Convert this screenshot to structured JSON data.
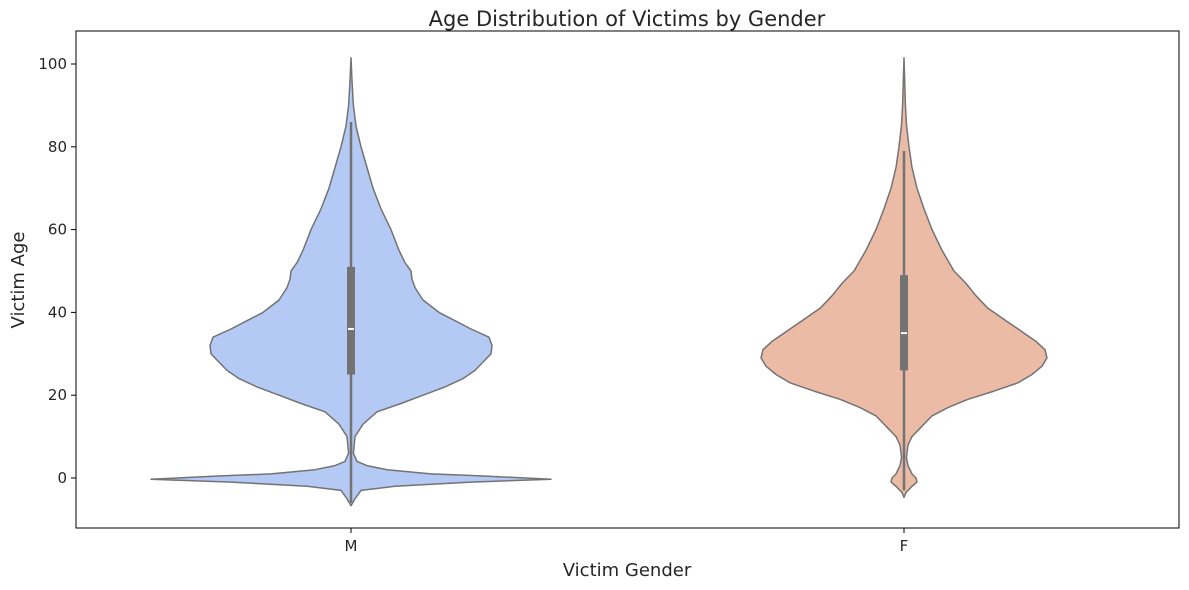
{
  "chart_data": {
    "type": "violin",
    "title": "Age Distribution of Victims by Gender",
    "xlabel": "Victim Gender",
    "ylabel": "Victim Age",
    "ylim": [
      -12,
      107
    ],
    "yticks": [
      0,
      20,
      40,
      60,
      80,
      100
    ],
    "categories": [
      "M",
      "F"
    ],
    "series": [
      {
        "name": "M",
        "color": "#b4c9f3",
        "quartiles": {
          "q1": 25,
          "median": 36,
          "q3": 51
        },
        "whiskers": [
          -6,
          86
        ],
        "density": [
          {
            "age": -6.7,
            "width": 0.0
          },
          {
            "age": -5,
            "width": 0.02
          },
          {
            "age": -3,
            "width": 0.05
          },
          {
            "age": -2,
            "width": 0.22
          },
          {
            "age": -1,
            "width": 0.6
          },
          {
            "age": -0.3,
            "width": 1.0
          },
          {
            "age": 0.5,
            "width": 0.65
          },
          {
            "age": 1,
            "width": 0.4
          },
          {
            "age": 2,
            "width": 0.18
          },
          {
            "age": 3,
            "width": 0.08
          },
          {
            "age": 4,
            "width": 0.03
          },
          {
            "age": 6,
            "width": 0.012
          },
          {
            "age": 10,
            "width": 0.02
          },
          {
            "age": 13,
            "width": 0.06
          },
          {
            "age": 16,
            "width": 0.13
          },
          {
            "age": 18,
            "width": 0.25
          },
          {
            "age": 20,
            "width": 0.36
          },
          {
            "age": 22,
            "width": 0.47
          },
          {
            "age": 24,
            "width": 0.56
          },
          {
            "age": 26,
            "width": 0.62
          },
          {
            "age": 28,
            "width": 0.66
          },
          {
            "age": 30,
            "width": 0.7
          },
          {
            "age": 32,
            "width": 0.705
          },
          {
            "age": 34,
            "width": 0.69
          },
          {
            "age": 36,
            "width": 0.6
          },
          {
            "age": 38,
            "width": 0.52
          },
          {
            "age": 40,
            "width": 0.44
          },
          {
            "age": 43,
            "width": 0.36
          },
          {
            "age": 46,
            "width": 0.32
          },
          {
            "age": 48,
            "width": 0.305
          },
          {
            "age": 50,
            "width": 0.3
          },
          {
            "age": 52,
            "width": 0.27
          },
          {
            "age": 55,
            "width": 0.24
          },
          {
            "age": 60,
            "width": 0.2
          },
          {
            "age": 65,
            "width": 0.15
          },
          {
            "age": 70,
            "width": 0.11
          },
          {
            "age": 75,
            "width": 0.08
          },
          {
            "age": 80,
            "width": 0.05
          },
          {
            "age": 85,
            "width": 0.025
          },
          {
            "age": 90,
            "width": 0.012
          },
          {
            "age": 95,
            "width": 0.006
          },
          {
            "age": 101.5,
            "width": 0.0
          }
        ]
      },
      {
        "name": "F",
        "color": "#ecbba6",
        "quartiles": {
          "q1": 26,
          "median": 35,
          "q3": 49
        },
        "whiskers": [
          -3,
          79
        ],
        "density": [
          {
            "age": -4.7,
            "width": 0.0
          },
          {
            "age": -3.5,
            "width": 0.01
          },
          {
            "age": -2,
            "width": 0.04
          },
          {
            "age": -1,
            "width": 0.065
          },
          {
            "age": 0,
            "width": 0.06
          },
          {
            "age": 1,
            "width": 0.04
          },
          {
            "age": 2,
            "width": 0.03
          },
          {
            "age": 3,
            "width": 0.02
          },
          {
            "age": 5,
            "width": 0.012
          },
          {
            "age": 8,
            "width": 0.02
          },
          {
            "age": 10,
            "width": 0.04
          },
          {
            "age": 12,
            "width": 0.08
          },
          {
            "age": 15,
            "width": 0.14
          },
          {
            "age": 17,
            "width": 0.22
          },
          {
            "age": 19,
            "width": 0.32
          },
          {
            "age": 21,
            "width": 0.45
          },
          {
            "age": 23,
            "width": 0.57
          },
          {
            "age": 25,
            "width": 0.64
          },
          {
            "age": 27,
            "width": 0.69
          },
          {
            "age": 29,
            "width": 0.715
          },
          {
            "age": 31,
            "width": 0.705
          },
          {
            "age": 33,
            "width": 0.66
          },
          {
            "age": 35,
            "width": 0.6
          },
          {
            "age": 38,
            "width": 0.51
          },
          {
            "age": 41,
            "width": 0.42
          },
          {
            "age": 44,
            "width": 0.36
          },
          {
            "age": 47,
            "width": 0.31
          },
          {
            "age": 50,
            "width": 0.25
          },
          {
            "age": 55,
            "width": 0.19
          },
          {
            "age": 60,
            "width": 0.14
          },
          {
            "age": 65,
            "width": 0.1
          },
          {
            "age": 70,
            "width": 0.065
          },
          {
            "age": 75,
            "width": 0.04
          },
          {
            "age": 80,
            "width": 0.025
          },
          {
            "age": 85,
            "width": 0.013
          },
          {
            "age": 90,
            "width": 0.007
          },
          {
            "age": 95,
            "width": 0.004
          },
          {
            "age": 101.5,
            "width": 0.0
          }
        ]
      }
    ]
  }
}
